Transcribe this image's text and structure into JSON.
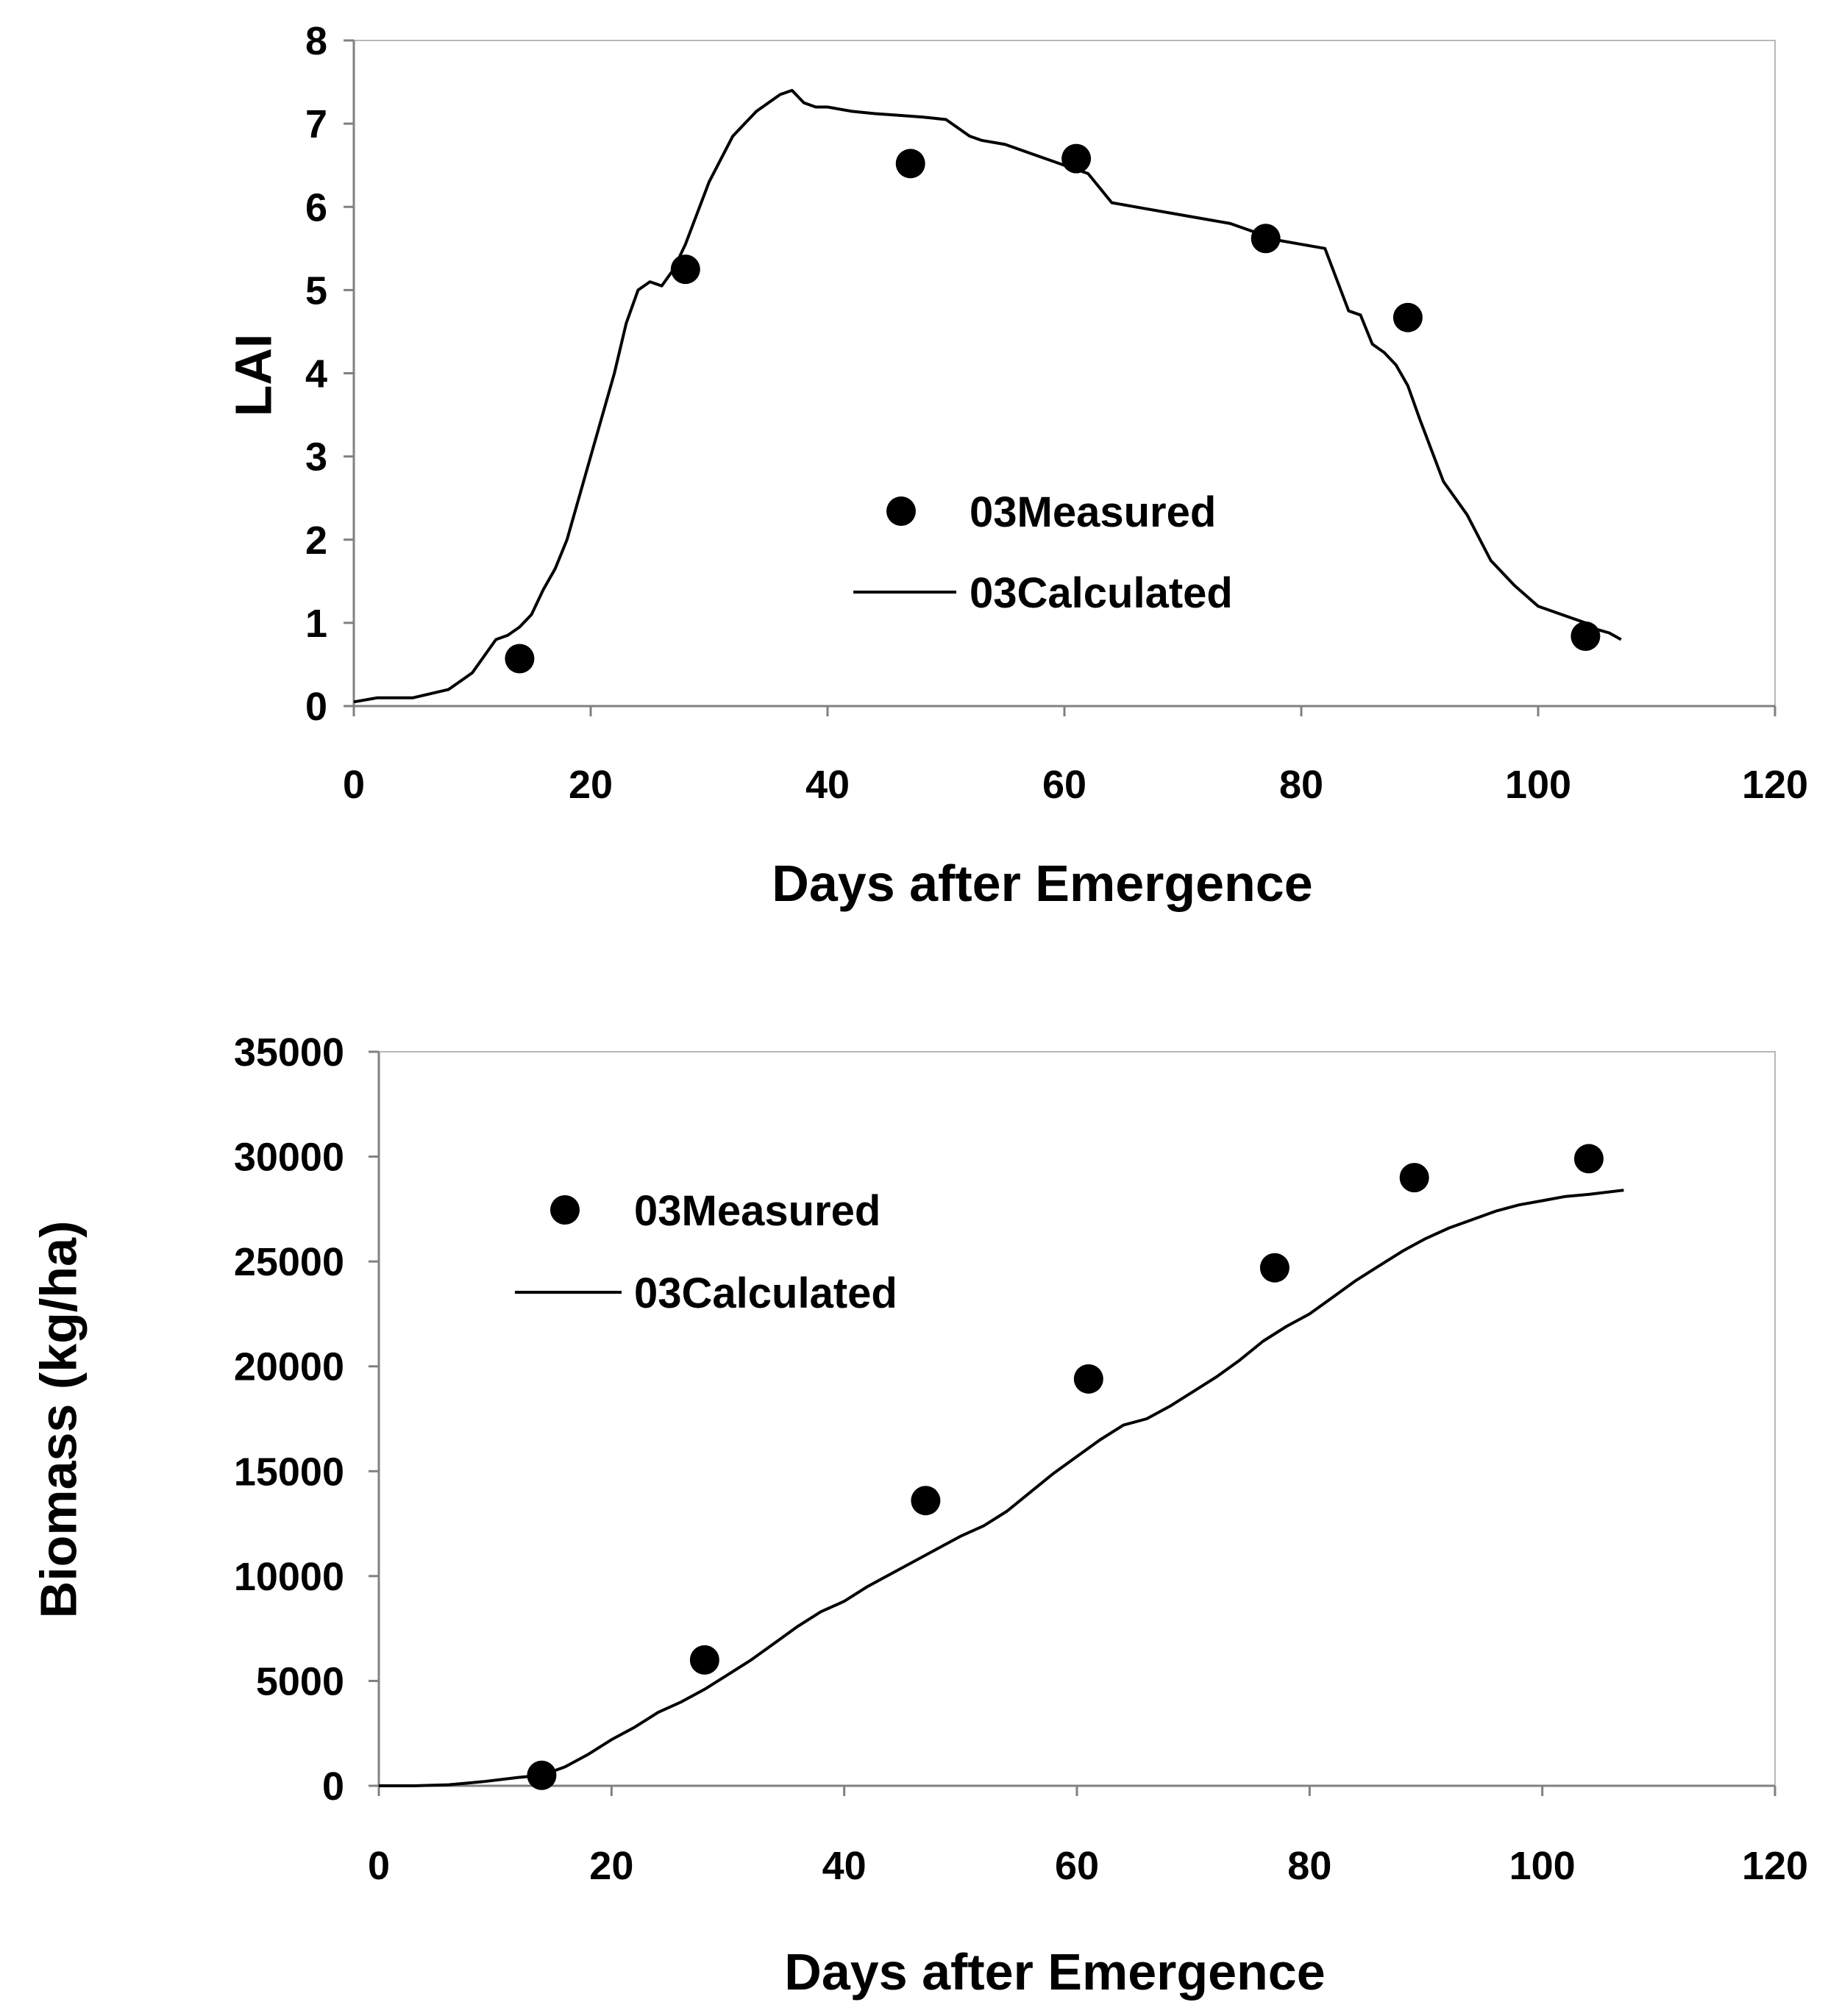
{
  "chart_data": [
    {
      "type": "scatter+line",
      "title": "",
      "xlabel": "Days after Emergence",
      "ylabel": "LAI",
      "xlim": [
        0,
        120
      ],
      "ylim": [
        0,
        8
      ],
      "xticks": [
        "0",
        "20",
        "40",
        "60",
        "80",
        "100",
        "120"
      ],
      "yticks": [
        "0",
        "1",
        "2",
        "3",
        "4",
        "5",
        "6",
        "7",
        "8"
      ],
      "grid": false,
      "legend_position": "center-right",
      "series": [
        {
          "name": "03Measured",
          "kind": "scatter",
          "marker": "filled-circle",
          "x": [
            14,
            28,
            47,
            61,
            77,
            89,
            104
          ],
          "y": [
            0.57,
            5.25,
            6.52,
            6.58,
            5.62,
            4.67,
            0.84
          ]
        },
        {
          "name": "03Calculated",
          "kind": "line",
          "x": [
            0,
            2,
            5,
            8,
            10,
            12,
            13,
            14,
            15,
            16,
            17,
            18,
            20,
            22,
            23,
            24,
            25,
            26,
            27,
            28,
            30,
            32,
            34,
            36,
            37,
            38,
            39,
            40,
            42,
            44,
            46,
            48,
            50,
            52,
            53,
            55,
            57,
            60,
            62,
            64,
            66,
            70,
            74,
            78,
            80,
            82,
            84,
            85,
            86,
            87,
            88,
            89,
            90,
            92,
            94,
            96,
            98,
            100,
            102,
            104,
            105,
            106,
            107
          ],
          "y": [
            0.05,
            0.1,
            0.1,
            0.2,
            0.4,
            0.8,
            0.85,
            0.95,
            1.1,
            1.4,
            1.65,
            2.0,
            3.0,
            4.0,
            4.6,
            5.0,
            5.1,
            5.05,
            5.25,
            5.55,
            6.3,
            6.85,
            7.15,
            7.35,
            7.4,
            7.25,
            7.2,
            7.2,
            7.15,
            7.12,
            7.1,
            7.08,
            7.05,
            6.85,
            6.8,
            6.75,
            6.65,
            6.5,
            6.4,
            6.05,
            6.0,
            5.9,
            5.8,
            5.6,
            5.55,
            5.5,
            4.75,
            4.7,
            4.35,
            4.25,
            4.1,
            3.85,
            3.45,
            2.7,
            2.3,
            1.75,
            1.45,
            1.2,
            1.1,
            1.0,
            0.92,
            0.88,
            0.8
          ]
        }
      ]
    },
    {
      "type": "scatter+line",
      "title": "",
      "xlabel": "Days after Emergence",
      "ylabel": "Biomass (kg/ha)",
      "xlim": [
        0,
        120
      ],
      "ylim": [
        0,
        35000
      ],
      "xticks": [
        "0",
        "20",
        "40",
        "60",
        "80",
        "100",
        "120"
      ],
      "yticks": [
        "0",
        "5000",
        "10000",
        "15000",
        "20000",
        "25000",
        "30000",
        "35000"
      ],
      "grid": false,
      "legend_position": "upper-left",
      "series": [
        {
          "name": "03Measured",
          "kind": "scatter",
          "marker": "filled-circle",
          "x": [
            14,
            28,
            47,
            61,
            77,
            89,
            104
          ],
          "y": [
            500,
            6000,
            13600,
            19400,
            24700,
            29000,
            29900
          ]
        },
        {
          "name": "03Calculated",
          "kind": "line",
          "x": [
            0,
            3,
            6,
            9,
            12,
            14,
            16,
            18,
            20,
            22,
            24,
            26,
            28,
            30,
            32,
            34,
            36,
            38,
            40,
            42,
            44,
            46,
            48,
            50,
            52,
            54,
            56,
            58,
            60,
            62,
            64,
            66,
            68,
            70,
            72,
            74,
            76,
            78,
            80,
            82,
            84,
            86,
            88,
            90,
            92,
            94,
            96,
            98,
            100,
            102,
            104,
            107
          ],
          "y": [
            0,
            0,
            50,
            200,
            400,
            500,
            900,
            1500,
            2200,
            2800,
            3500,
            4000,
            4600,
            5300,
            6000,
            6800,
            7600,
            8300,
            8800,
            9500,
            10100,
            10700,
            11300,
            11900,
            12400,
            13100,
            14000,
            14900,
            15700,
            16500,
            17200,
            17500,
            18100,
            18800,
            19500,
            20300,
            21200,
            21900,
            22500,
            23300,
            24100,
            24800,
            25500,
            26100,
            26600,
            27000,
            27400,
            27700,
            27900,
            28100,
            28200,
            28400
          ]
        }
      ]
    }
  ]
}
